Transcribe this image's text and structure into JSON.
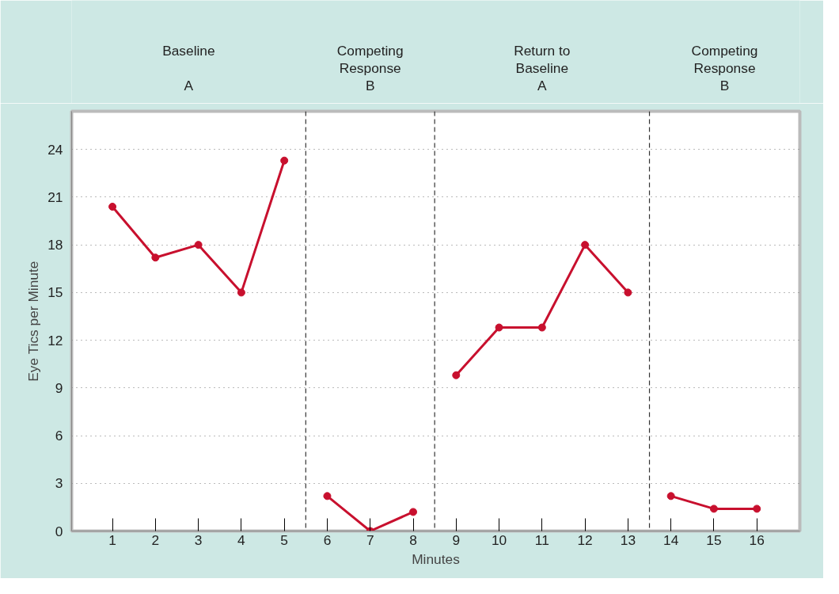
{
  "chart_data": {
    "type": "line",
    "xlabel": "Minutes",
    "ylabel": "Eye Tics per Minute",
    "xlim": [
      0.05,
      17
    ],
    "ylim": [
      0,
      26.4
    ],
    "xticks": [
      1,
      2,
      3,
      4,
      5,
      6,
      7,
      8,
      9,
      10,
      11,
      12,
      13,
      14,
      15,
      16
    ],
    "yticks": [
      0,
      3,
      6,
      9,
      12,
      15,
      18,
      21,
      24
    ],
    "grid": "y",
    "marker": "circle",
    "line_style": "solid",
    "series": [
      {
        "color": "#c8102e",
        "x": [
          1,
          2,
          3,
          4,
          5
        ],
        "values": [
          20.4,
          17.2,
          18.0,
          15.0,
          23.3
        ]
      },
      {
        "color": "#c8102e",
        "x": [
          6,
          7,
          8
        ],
        "values": [
          2.2,
          0,
          1.2
        ]
      },
      {
        "color": "#c8102e",
        "x": [
          9,
          10,
          11,
          12,
          13
        ],
        "values": [
          9.8,
          12.8,
          12.8,
          18.0,
          15.0
        ]
      },
      {
        "color": "#c8102e",
        "x": [
          14,
          15,
          16
        ],
        "values": [
          2.2,
          1.4,
          1.4
        ]
      }
    ],
    "ref_lines": [
      {
        "axis": "x",
        "value": 5.5,
        "color": "#333333",
        "line_style": "dashed"
      },
      {
        "axis": "x",
        "value": 8.5,
        "color": "#333333",
        "line_style": "dashed"
      },
      {
        "axis": "x",
        "value": 13.5,
        "color": "#333333",
        "line_style": "dashed"
      }
    ],
    "annotations": [
      "Baseline\n\nA",
      "Competing\nResponse\nB",
      "Return to\nBaseline\nA",
      "Competing\nResponse\nB"
    ]
  }
}
